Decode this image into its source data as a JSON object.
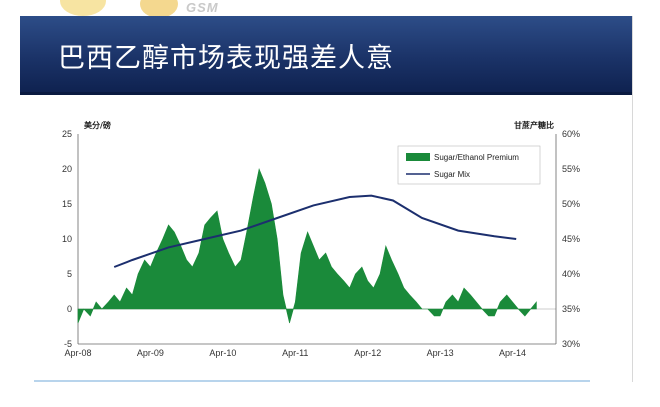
{
  "header": {
    "title": "巴西乙醇市场表现强差人意"
  },
  "logo": {
    "text": "GSM"
  },
  "colors": {
    "area": "#1a8a3a",
    "line": "#1c2f6e",
    "header": "#1b3368"
  },
  "chart_data": {
    "type": "area",
    "left_axis_unit": "美分/磅",
    "right_axis_unit": "甘蔗产糖比",
    "x_ticks": [
      "Apr-08",
      "Apr-09",
      "Apr-10",
      "Apr-11",
      "Apr-12",
      "Apr-13",
      "Apr-14"
    ],
    "left_ticks": [
      "-5",
      "0",
      "5",
      "10",
      "15",
      "20",
      "25"
    ],
    "right_ticks": [
      "30%",
      "35%",
      "40%",
      "45%",
      "50%",
      "55%",
      "60%"
    ],
    "ylim_left": [
      -5,
      25
    ],
    "ylim_right": [
      30,
      60
    ],
    "legend_placement": "top-right",
    "series": [
      {
        "name": "Sugar/Ethanol Premium",
        "type": "area",
        "axis": "left",
        "x": [
          2008.25,
          2008.33,
          2008.42,
          2008.5,
          2008.58,
          2008.67,
          2008.75,
          2008.83,
          2008.92,
          2009.0,
          2009.08,
          2009.17,
          2009.25,
          2009.33,
          2009.42,
          2009.5,
          2009.58,
          2009.67,
          2009.75,
          2009.83,
          2009.92,
          2010.0,
          2010.08,
          2010.17,
          2010.25,
          2010.33,
          2010.42,
          2010.5,
          2010.58,
          2010.67,
          2010.75,
          2010.83,
          2010.92,
          2011.0,
          2011.08,
          2011.17,
          2011.25,
          2011.33,
          2011.42,
          2011.5,
          2011.58,
          2011.67,
          2011.75,
          2011.83,
          2011.92,
          2012.0,
          2012.08,
          2012.17,
          2012.25,
          2012.33,
          2012.42,
          2012.5,
          2012.58,
          2012.67,
          2012.75,
          2012.83,
          2012.92,
          2013.0,
          2013.08,
          2013.17,
          2013.25,
          2013.33,
          2013.42,
          2013.5,
          2013.58,
          2013.67,
          2013.75,
          2013.83,
          2013.92,
          2014.0,
          2014.08,
          2014.17,
          2014.25,
          2014.33,
          2014.42,
          2014.5,
          2014.58
        ],
        "values": [
          -2,
          0,
          -1,
          1,
          0,
          1,
          2,
          1,
          3,
          2,
          5,
          7,
          6,
          8,
          10,
          12,
          11,
          9,
          7,
          6,
          8,
          12,
          13,
          14,
          10,
          8,
          6,
          7,
          11,
          16,
          20,
          18,
          15,
          10,
          2,
          -2,
          1,
          8,
          11,
          9,
          7,
          8,
          6,
          5,
          4,
          3,
          5,
          6,
          4,
          3,
          5,
          9,
          7,
          5,
          3,
          2,
          1,
          0,
          0,
          -1,
          -1,
          1,
          2,
          1,
          3,
          2,
          1,
          0,
          -1,
          -1,
          1,
          2,
          1,
          0,
          -1,
          0,
          1
        ]
      },
      {
        "name": "Sugar Mix",
        "type": "line",
        "axis": "right",
        "x": [
          2008.75,
          2009.0,
          2009.5,
          2010.0,
          2010.5,
          2011.0,
          2011.5,
          2012.0,
          2012.3,
          2012.6,
          2013.0,
          2013.5,
          2014.0,
          2014.3
        ],
        "values": [
          41.0,
          42.0,
          43.8,
          45.0,
          46.2,
          48.0,
          49.8,
          51.0,
          51.2,
          50.5,
          48.0,
          46.2,
          45.4,
          45.0
        ]
      }
    ]
  }
}
